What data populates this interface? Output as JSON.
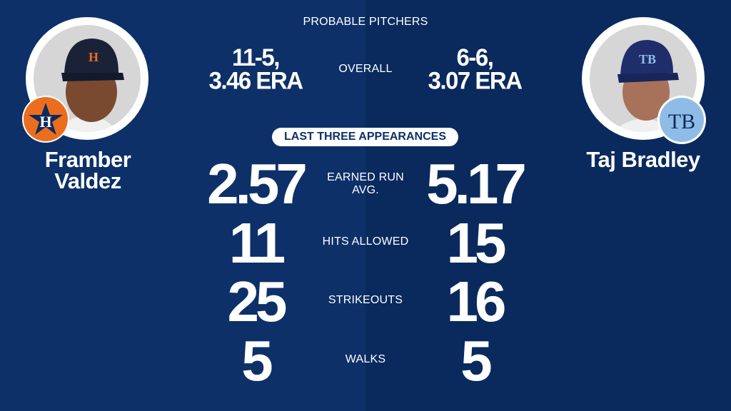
{
  "header": {
    "title": "PROBABLE PITCHERS"
  },
  "colors": {
    "background": "#0d3068",
    "astros_orange": "#eb6e1f",
    "rays_light_blue": "#8fbce6",
    "white": "#ffffff"
  },
  "pitchers": {
    "left": {
      "name_line1": "Framber",
      "name_line2": "Valdez",
      "team_logo": "astros-logo",
      "overall_line1": "11-5,",
      "overall_line2": "3.46 ERA"
    },
    "right": {
      "name": "Taj Bradley",
      "team_logo": "rays-logo",
      "overall_line1": "6-6,",
      "overall_line2": "3.07 ERA"
    }
  },
  "overall_label": "OVERALL",
  "section_pill": "LAST THREE APPEARANCES",
  "stats": [
    {
      "label_line1": "EARNED RUN",
      "label_line2": "AVG.",
      "left": "2.57",
      "right": "5.17"
    },
    {
      "label_line1": "HITS ALLOWED",
      "left": "11",
      "right": "15"
    },
    {
      "label_line1": "STRIKEOUTS",
      "left": "25",
      "right": "16"
    },
    {
      "label_line1": "WALKS",
      "left": "5",
      "right": "5"
    }
  ]
}
